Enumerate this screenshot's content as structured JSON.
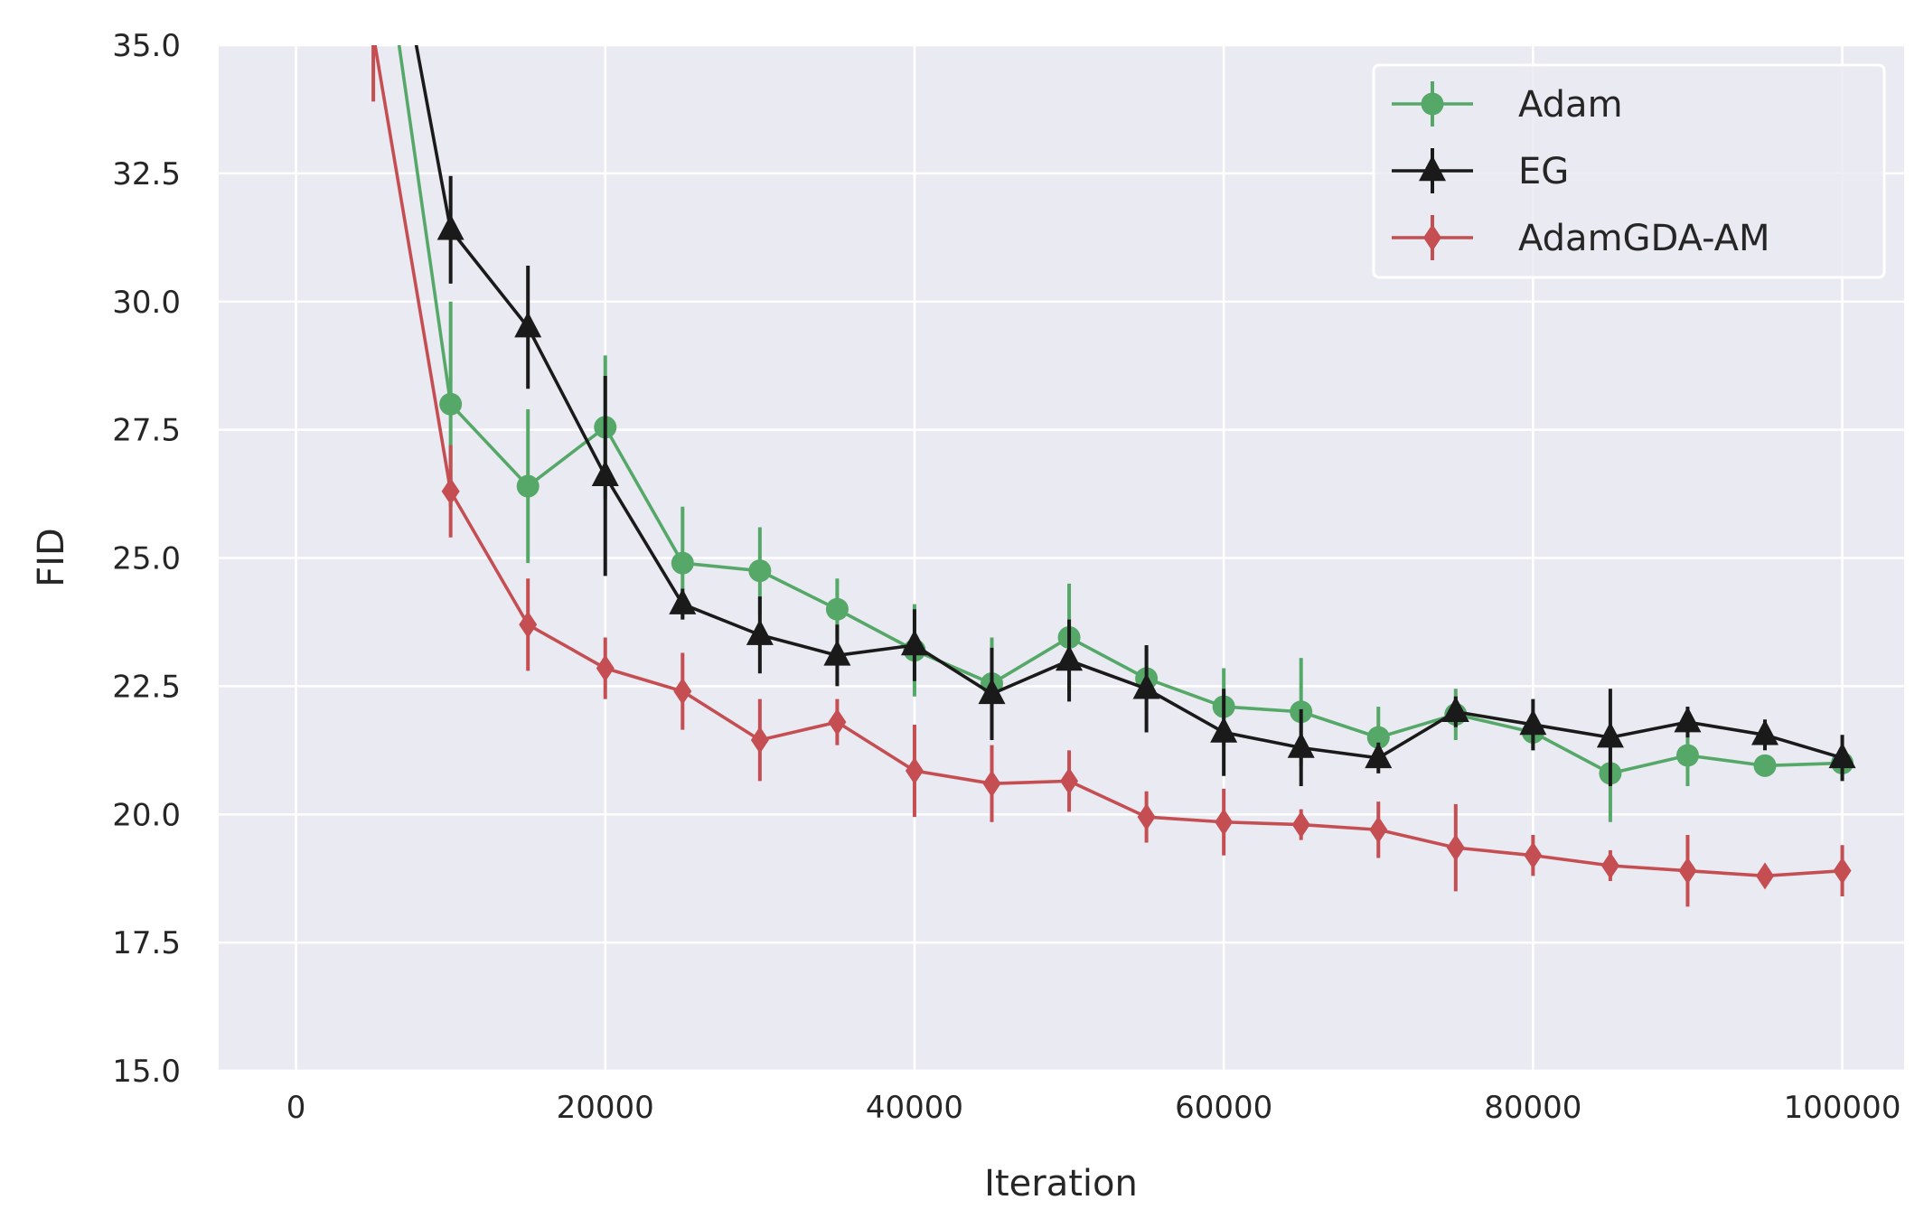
{
  "chart_data": {
    "type": "line",
    "xlabel": "Iteration",
    "ylabel": "FID",
    "xlim": [
      -5000,
      104000
    ],
    "ylim": [
      15.0,
      35.0
    ],
    "x_ticks": [
      0,
      20000,
      40000,
      60000,
      80000,
      100000
    ],
    "x_tick_labels": [
      "0",
      "20000",
      "40000",
      "60000",
      "80000",
      "100000"
    ],
    "y_ticks": [
      15.0,
      17.5,
      20.0,
      22.5,
      25.0,
      27.5,
      30.0,
      32.5,
      35.0
    ],
    "y_tick_labels": [
      "15.0",
      "17.5",
      "20.0",
      "22.5",
      "25.0",
      "27.5",
      "30.0",
      "32.5",
      "35.0"
    ],
    "grid": true,
    "legend_position": "top-right",
    "series": [
      {
        "name": "Adam",
        "color": "#55a868",
        "marker": "circle",
        "x": [
          5000,
          10000,
          15000,
          20000,
          25000,
          30000,
          35000,
          40000,
          45000,
          50000,
          55000,
          60000,
          65000,
          70000,
          75000,
          80000,
          85000,
          90000,
          95000,
          100000
        ],
        "y": [
          38.5,
          28.0,
          26.4,
          27.55,
          24.9,
          24.75,
          24.0,
          23.2,
          22.55,
          23.45,
          22.65,
          22.1,
          22.0,
          21.5,
          21.95,
          21.6,
          20.8,
          21.15,
          20.95,
          21.0
        ],
        "err": [
          2.0,
          2.0,
          1.5,
          1.4,
          1.1,
          0.85,
          0.6,
          0.9,
          0.9,
          1.05,
          0.6,
          0.75,
          1.05,
          0.6,
          0.5,
          0.35,
          0.95,
          0.6,
          0.2,
          0.3
        ]
      },
      {
        "name": "EG",
        "color": "#1a1a1a",
        "marker": "triangle",
        "x": [
          5000,
          10000,
          15000,
          20000,
          25000,
          30000,
          35000,
          40000,
          45000,
          50000,
          55000,
          60000,
          65000,
          70000,
          75000,
          80000,
          85000,
          90000,
          95000,
          100000
        ],
        "y": [
          39.5,
          31.4,
          29.5,
          26.6,
          24.1,
          23.5,
          23.1,
          23.3,
          22.35,
          23.0,
          22.45,
          21.6,
          21.3,
          21.1,
          22.0,
          21.75,
          21.5,
          21.8,
          21.55,
          21.1
        ],
        "err": [
          2.0,
          1.05,
          1.2,
          1.95,
          0.3,
          0.75,
          0.6,
          0.7,
          0.9,
          0.8,
          0.85,
          0.85,
          0.75,
          0.3,
          0.3,
          0.5,
          0.95,
          0.3,
          0.3,
          0.45
        ]
      },
      {
        "name": "AdamGDA-AM",
        "color": "#c44e52",
        "marker": "diamond",
        "x": [
          5000,
          10000,
          15000,
          20000,
          25000,
          30000,
          35000,
          40000,
          45000,
          50000,
          55000,
          60000,
          65000,
          70000,
          75000,
          80000,
          85000,
          90000,
          95000,
          100000
        ],
        "y": [
          35.2,
          26.3,
          23.7,
          22.85,
          22.4,
          21.45,
          21.8,
          20.85,
          20.6,
          20.65,
          19.95,
          19.85,
          19.8,
          19.7,
          19.35,
          19.2,
          19.0,
          18.9,
          18.8,
          18.9
        ],
        "err": [
          1.3,
          0.9,
          0.9,
          0.6,
          0.75,
          0.8,
          0.45,
          0.9,
          0.75,
          0.6,
          0.5,
          0.65,
          0.3,
          0.55,
          0.85,
          0.4,
          0.3,
          0.7,
          0.2,
          0.5
        ]
      }
    ]
  }
}
